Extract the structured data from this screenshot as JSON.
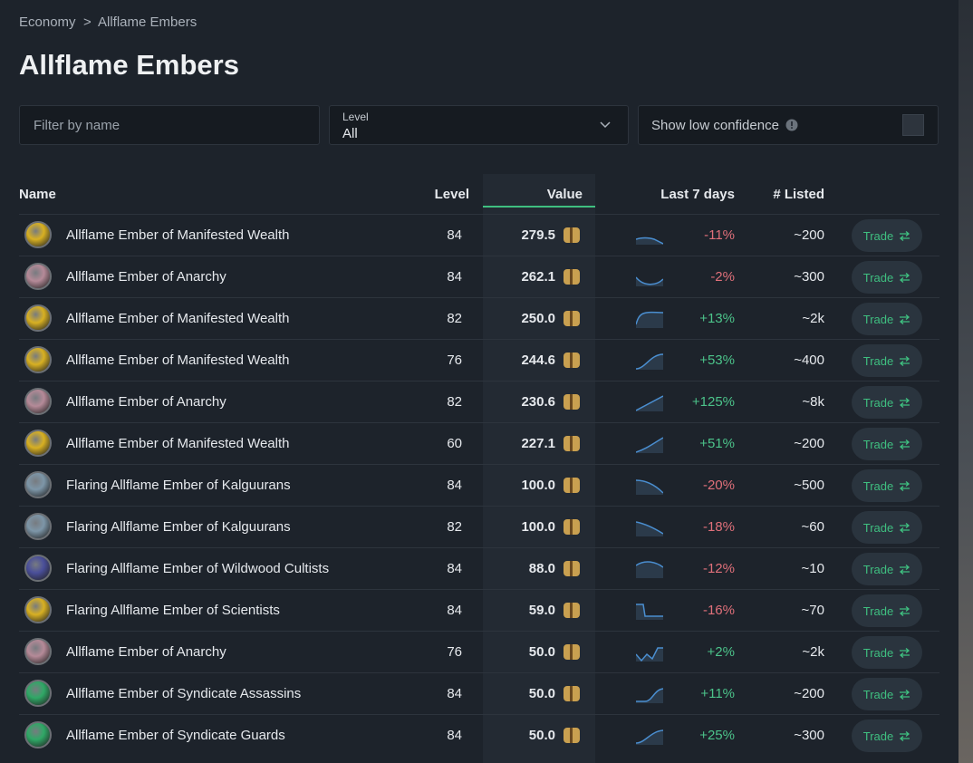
{
  "breadcrumb": {
    "items": [
      "Economy",
      "Allflame Embers"
    ],
    "separator": ">"
  },
  "title": "Allflame Embers",
  "filters": {
    "name_placeholder": "Filter by name",
    "level_label": "Level",
    "level_value": "All",
    "low_confidence": "Show low confidence"
  },
  "table": {
    "columns": [
      "Name",
      "Level",
      "Value",
      "Last 7 days",
      "# Listed"
    ],
    "rows": [
      {
        "name": "Allflame Ember of Manifested Wealth",
        "level": 84,
        "value": "279.5",
        "change": "-11%",
        "listed": "~200",
        "action": "Trade"
      },
      {
        "name": "Allflame Ember of Anarchy",
        "level": 84,
        "value": "262.1",
        "change": "-2%",
        "listed": "~300",
        "action": "Trade"
      },
      {
        "name": "Allflame Ember of Manifested Wealth",
        "level": 82,
        "value": "250.0",
        "change": "+13%",
        "listed": "~2k",
        "action": "Trade"
      },
      {
        "name": "Allflame Ember of Manifested Wealth",
        "level": 76,
        "value": "244.6",
        "change": "+53%",
        "listed": "~400",
        "action": "Trade"
      },
      {
        "name": "Allflame Ember of Anarchy",
        "level": 82,
        "value": "230.6",
        "change": "+125%",
        "listed": "~8k",
        "action": "Trade"
      },
      {
        "name": "Allflame Ember of Manifested Wealth",
        "level": 60,
        "value": "227.1",
        "change": "+51%",
        "listed": "~200",
        "action": "Trade"
      },
      {
        "name": "Flaring Allflame Ember of Kalguurans",
        "level": 84,
        "value": "100.0",
        "change": "-20%",
        "listed": "~500",
        "action": "Trade"
      },
      {
        "name": "Flaring Allflame Ember of Kalguurans",
        "level": 82,
        "value": "100.0",
        "change": "-18%",
        "listed": "~60",
        "action": "Trade"
      },
      {
        "name": "Flaring Allflame Ember of Wildwood Cultists",
        "level": 84,
        "value": "88.0",
        "change": "-12%",
        "listed": "~10",
        "action": "Trade"
      },
      {
        "name": "Flaring Allflame Ember of Scientists",
        "level": 84,
        "value": "59.0",
        "change": "-16%",
        "listed": "~70",
        "action": "Trade"
      },
      {
        "name": "Allflame Ember of Anarchy",
        "level": 76,
        "value": "50.0",
        "change": "+2%",
        "listed": "~2k",
        "action": "Trade"
      },
      {
        "name": "Allflame Ember of Syndicate Assassins",
        "level": 84,
        "value": "50.0",
        "change": "+11%",
        "listed": "~200",
        "action": "Trade"
      },
      {
        "name": "Allflame Ember of Syndicate Guards",
        "level": 84,
        "value": "50.0",
        "change": "+25%",
        "listed": "~300",
        "action": "Trade"
      }
    ]
  }
}
